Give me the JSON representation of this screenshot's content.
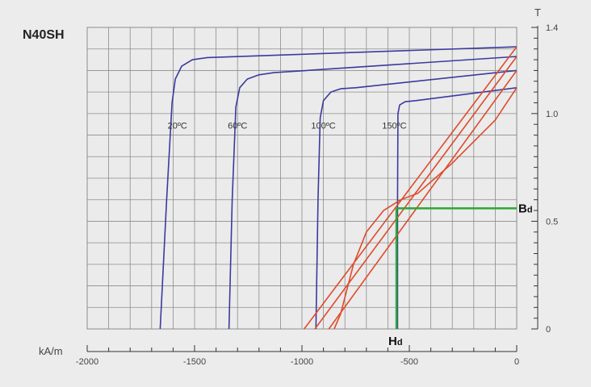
{
  "chart_data": {
    "type": "line",
    "title": "N40SH",
    "xlabel": "kA/m",
    "ylabel": "T",
    "xlim": [
      -2000,
      0
    ],
    "ylim": [
      0,
      1.4
    ],
    "grid": true,
    "x_ticks": [
      {
        "value": -2000,
        "label": "-2000"
      },
      {
        "value": -1500,
        "label": "-1500"
      },
      {
        "value": -1000,
        "label": "-1000"
      },
      {
        "value": -500,
        "label": "-500"
      },
      {
        "value": 0,
        "label": "0"
      }
    ],
    "y_ticks": [
      {
        "value": 0,
        "label": "0"
      },
      {
        "value": 0.5,
        "label": "0.5"
      },
      {
        "value": 1.0,
        "label": "1.0"
      },
      {
        "value": 1.4,
        "label": "1.4"
      }
    ],
    "colors": {
      "demagnetization_curve": "#3a3aa0",
      "induction_curve": "#e04a2a",
      "working_point": "#2aa838",
      "grid": "#8c8c8c",
      "axis": "#333333",
      "background": "#ececec"
    },
    "series": [
      {
        "name": "20ºC",
        "label_at": [
          -1580,
          0.93
        ],
        "kind": "J",
        "points": [
          [
            -1660,
            0
          ],
          [
            -1630,
            0.6
          ],
          [
            -1605,
            1.05
          ],
          [
            -1590,
            1.16
          ],
          [
            -1560,
            1.22
          ],
          [
            -1510,
            1.25
          ],
          [
            -1440,
            1.26
          ],
          [
            0,
            1.31
          ]
        ]
      },
      {
        "name": "60ºC",
        "label_at": [
          -1300,
          0.93
        ],
        "kind": "J",
        "points": [
          [
            -1340,
            0
          ],
          [
            -1325,
            0.6
          ],
          [
            -1308,
            1.03
          ],
          [
            -1290,
            1.12
          ],
          [
            -1255,
            1.16
          ],
          [
            -1200,
            1.18
          ],
          [
            -1130,
            1.19
          ],
          [
            0,
            1.265
          ]
        ]
      },
      {
        "name": "100ºC",
        "label_at": [
          -900,
          0.93
        ],
        "kind": "J",
        "points": [
          [
            -935,
            0
          ],
          [
            -925,
            0.6
          ],
          [
            -915,
            0.98
          ],
          [
            -900,
            1.06
          ],
          [
            -865,
            1.1
          ],
          [
            -820,
            1.115
          ],
          [
            -750,
            1.12
          ],
          [
            0,
            1.2
          ]
        ]
      },
      {
        "name": "150ºC",
        "label_at": [
          -570,
          0.93
        ],
        "kind": "J",
        "points": [
          [
            -555,
            0
          ],
          [
            -555,
            0.6
          ],
          [
            -553,
            1.0
          ],
          [
            -545,
            1.04
          ],
          [
            -520,
            1.055
          ],
          [
            -470,
            1.06
          ],
          [
            0,
            1.12
          ]
        ]
      },
      {
        "name": "",
        "kind": "B",
        "points": [
          [
            -990,
            0
          ],
          [
            0,
            1.31
          ]
        ]
      },
      {
        "name": "",
        "kind": "B",
        "points": [
          [
            -940,
            0
          ],
          [
            0,
            1.265
          ]
        ]
      },
      {
        "name": "",
        "kind": "B",
        "points": [
          [
            -875,
            0
          ],
          [
            0,
            1.2
          ]
        ]
      },
      {
        "name": "",
        "kind": "B",
        "points": [
          [
            -850,
            0
          ],
          [
            -820,
            0.07
          ],
          [
            -760,
            0.3
          ],
          [
            -700,
            0.45
          ],
          [
            -620,
            0.55
          ],
          [
            -540,
            0.6
          ],
          [
            -460,
            0.63
          ],
          [
            -380,
            0.7
          ],
          [
            -300,
            0.77
          ],
          [
            -200,
            0.87
          ],
          [
            -100,
            0.97
          ],
          [
            0,
            1.12
          ]
        ]
      }
    ],
    "annotations": {
      "bd": {
        "label": "Bd",
        "value": 0.56
      },
      "hd": {
        "label": "Hd",
        "value": -560
      }
    }
  }
}
